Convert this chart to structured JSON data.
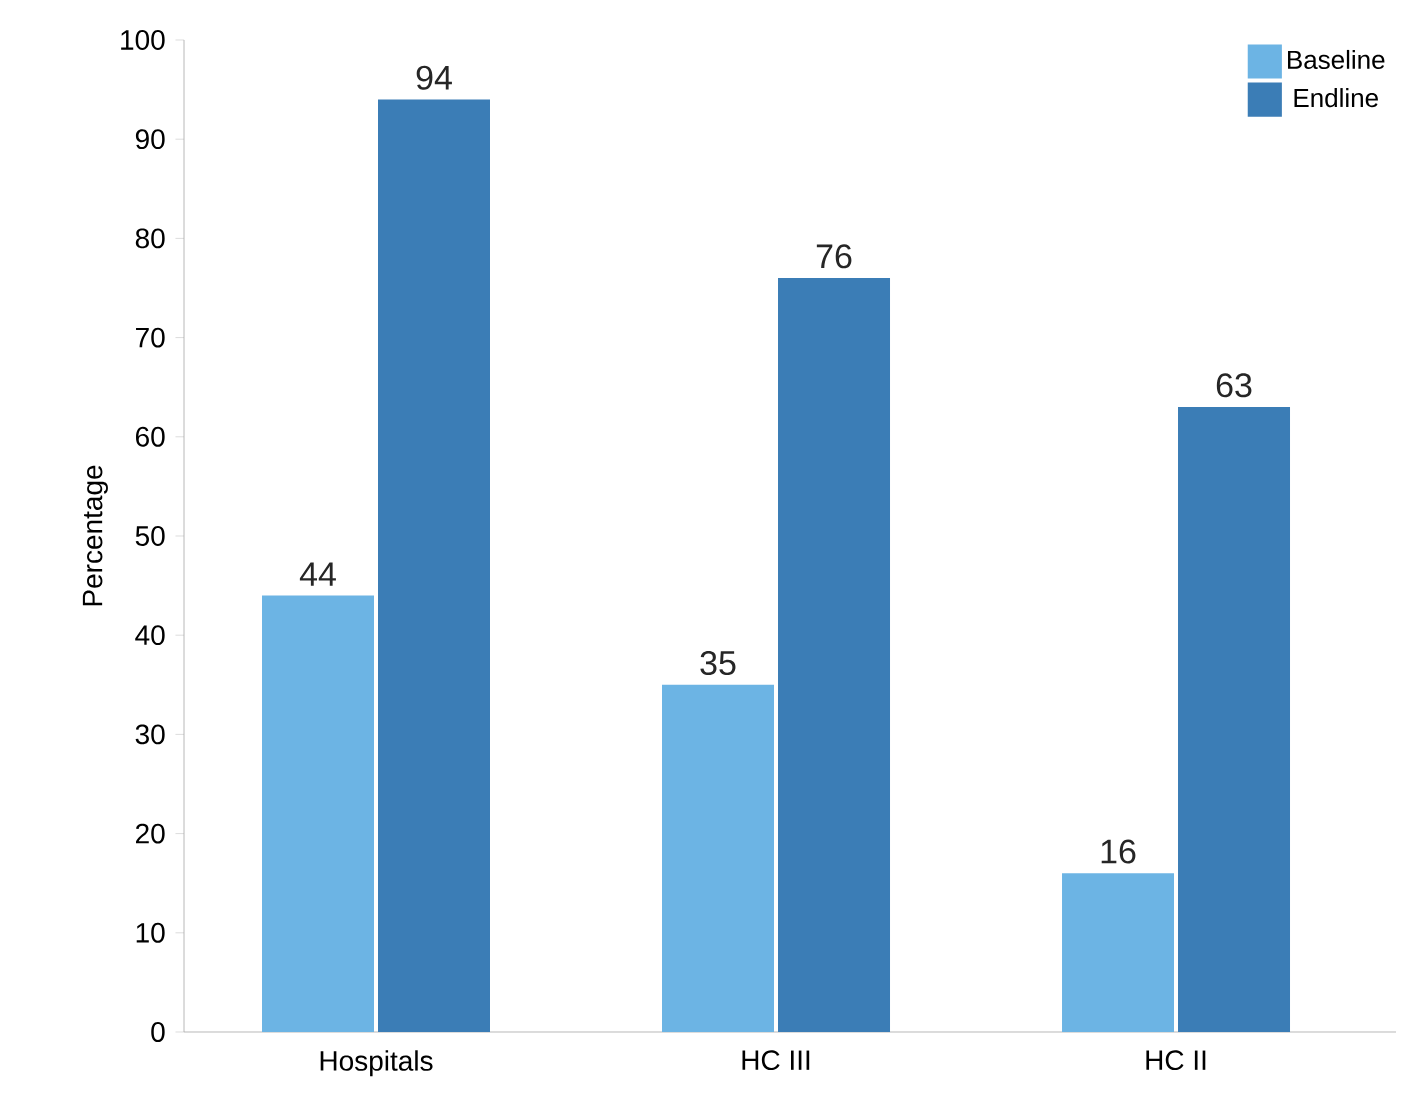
{
  "chart_data": {
    "type": "bar",
    "ylabel": "Percentage",
    "categories": [
      "Hospitals",
      "HC III",
      "HC II"
    ],
    "series": [
      {
        "name": "Baseline",
        "color": "#6cb4e4",
        "values": [
          44,
          35,
          16
        ]
      },
      {
        "name": "Endline",
        "color": "#3b7db6",
        "values": [
          94,
          76,
          63
        ]
      }
    ],
    "ylim": [
      0,
      100
    ],
    "yticks": [
      0,
      10,
      20,
      30,
      40,
      50,
      60,
      70,
      80,
      90,
      100
    ],
    "data_labels": true,
    "legend": "top right",
    "grid": false
  }
}
